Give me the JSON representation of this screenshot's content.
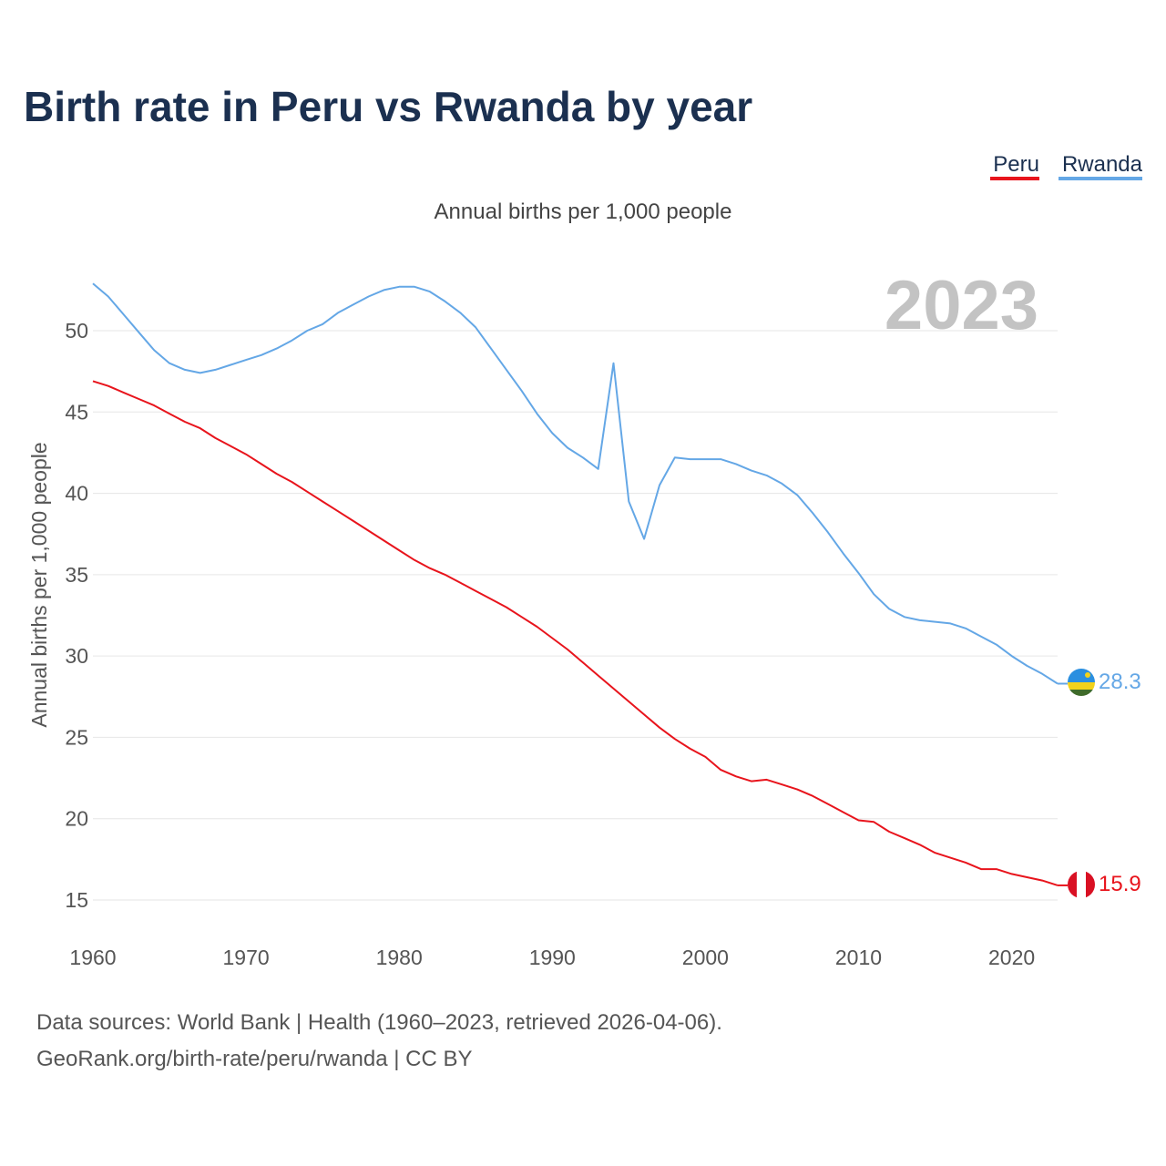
{
  "colors": {
    "peru": "#e8141c",
    "rwanda": "#64a7e6",
    "title": "#1b3050"
  },
  "source": {
    "line1": "Data sources: World Bank | Health (1960–2023, retrieved 2026-04-06).",
    "line2": "GeoRank.org/birth-rate/peru/rwanda | CC BY"
  },
  "chart_data": {
    "type": "line",
    "title": "Birth rate in Peru vs Rwanda by year",
    "subtitle": "Annual births per 1,000 people",
    "xlabel": "",
    "ylabel": "Annual births per 1,000 people",
    "xlim": [
      1960,
      2023
    ],
    "ylim": [
      15,
      53
    ],
    "yticks": [
      15,
      20,
      25,
      30,
      35,
      40,
      45,
      50
    ],
    "xticks": [
      1960,
      1970,
      1980,
      1990,
      2000,
      2010,
      2020
    ],
    "grid": true,
    "legend_position": "top-right",
    "year_label": "2023",
    "x": [
      1960,
      1961,
      1962,
      1963,
      1964,
      1965,
      1966,
      1967,
      1968,
      1969,
      1970,
      1971,
      1972,
      1973,
      1974,
      1975,
      1976,
      1977,
      1978,
      1979,
      1980,
      1981,
      1982,
      1983,
      1984,
      1985,
      1986,
      1987,
      1988,
      1989,
      1990,
      1991,
      1992,
      1993,
      1994,
      1995,
      1996,
      1997,
      1998,
      1999,
      2000,
      2001,
      2002,
      2003,
      2004,
      2005,
      2006,
      2007,
      2008,
      2009,
      2010,
      2011,
      2012,
      2013,
      2014,
      2015,
      2016,
      2017,
      2018,
      2019,
      2020,
      2021,
      2022,
      2023
    ],
    "series": [
      {
        "name": "Peru",
        "end_label": "15.9",
        "values": [
          46.9,
          46.6,
          46.2,
          45.8,
          45.4,
          44.9,
          44.4,
          44.0,
          43.4,
          42.9,
          42.4,
          41.8,
          41.2,
          40.7,
          40.1,
          39.5,
          38.9,
          38.3,
          37.7,
          37.1,
          36.5,
          35.9,
          35.4,
          35.0,
          34.5,
          34.0,
          33.5,
          33.0,
          32.4,
          31.8,
          31.1,
          30.4,
          29.6,
          28.8,
          28.0,
          27.2,
          26.4,
          25.6,
          24.9,
          24.3,
          23.8,
          23.0,
          22.6,
          22.3,
          22.4,
          22.1,
          21.8,
          21.4,
          20.9,
          20.4,
          19.9,
          19.8,
          19.2,
          18.8,
          18.4,
          17.9,
          17.6,
          17.3,
          16.9,
          16.9,
          16.6,
          16.4,
          16.2,
          15.9
        ]
      },
      {
        "name": "Rwanda",
        "end_label": "28.3",
        "values": [
          52.9,
          52.1,
          51.0,
          49.9,
          48.8,
          48.0,
          47.6,
          47.4,
          47.6,
          47.9,
          48.2,
          48.5,
          48.9,
          49.4,
          50.0,
          50.4,
          51.1,
          51.6,
          52.1,
          52.5,
          52.7,
          52.7,
          52.4,
          51.8,
          51.1,
          50.2,
          48.9,
          47.6,
          46.3,
          44.9,
          43.7,
          42.8,
          42.2,
          41.5,
          48.0,
          39.5,
          37.2,
          40.5,
          42.2,
          42.1,
          42.1,
          42.1,
          41.8,
          41.4,
          41.1,
          40.6,
          39.9,
          38.8,
          37.6,
          36.3,
          35.1,
          33.8,
          32.9,
          32.4,
          32.2,
          32.1,
          32.0,
          31.7,
          31.2,
          30.7,
          30.0,
          29.4,
          28.9,
          28.3
        ]
      }
    ]
  }
}
